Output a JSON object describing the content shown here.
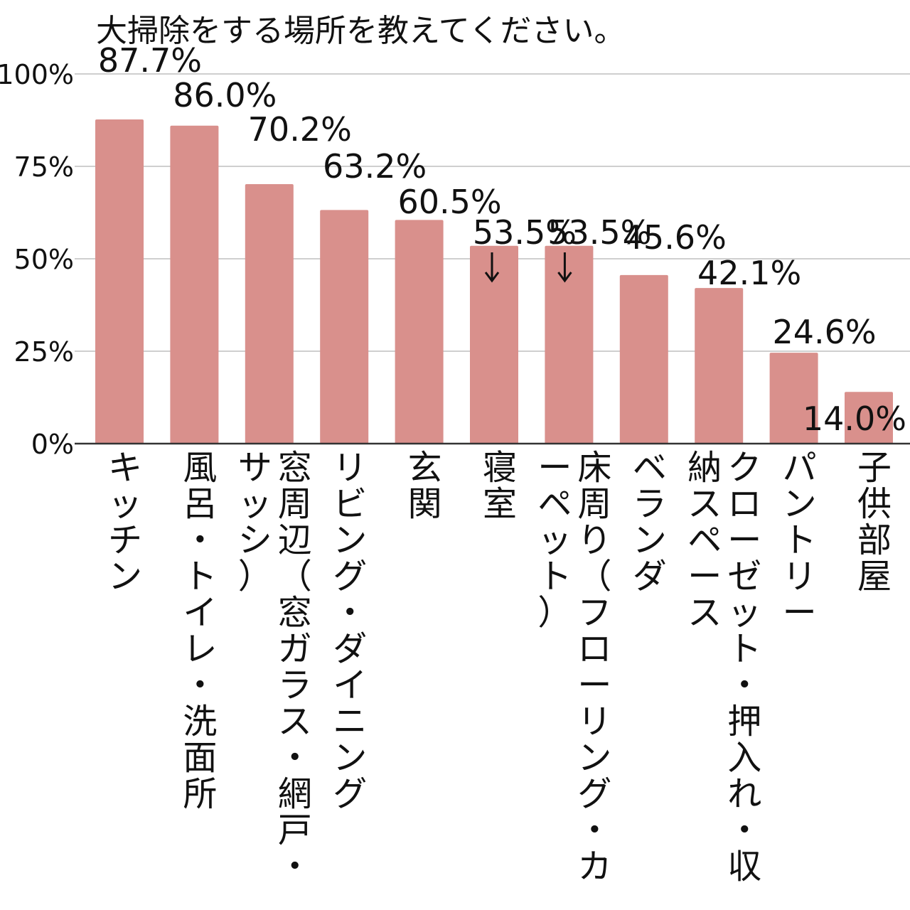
{
  "chart_data": {
    "type": "bar",
    "title": "大掃除をする場所を教えてください。",
    "ylabel": "",
    "xlabel": "",
    "ylim": [
      0,
      100
    ],
    "yticks": [
      "0%",
      "25%",
      "50%",
      "75%",
      "100%"
    ],
    "grid": true,
    "bar_color": "#d9908c",
    "categories": [
      "キッチン",
      "風呂・トイレ・洗面所",
      "窓周辺（窓ガラス・網戸・サッシ）",
      "リビング・ダイニング",
      "玄関",
      "寝室",
      "床周り（フローリング・カーペット）",
      "ベランダ",
      "クローゼット・押入れ・収納スペース",
      "パントリー",
      "子供部屋"
    ],
    "values": [
      87.7,
      86.0,
      70.2,
      63.2,
      60.5,
      53.5,
      53.5,
      45.6,
      42.1,
      24.6,
      14.0
    ],
    "data_labels": [
      "87.7%",
      "86.0%",
      "70.2%",
      "63.2%",
      "60.5%",
      "53.5%",
      "53.5%",
      "45.6%",
      "42.1%",
      "24.6%",
      "14.0%"
    ]
  }
}
